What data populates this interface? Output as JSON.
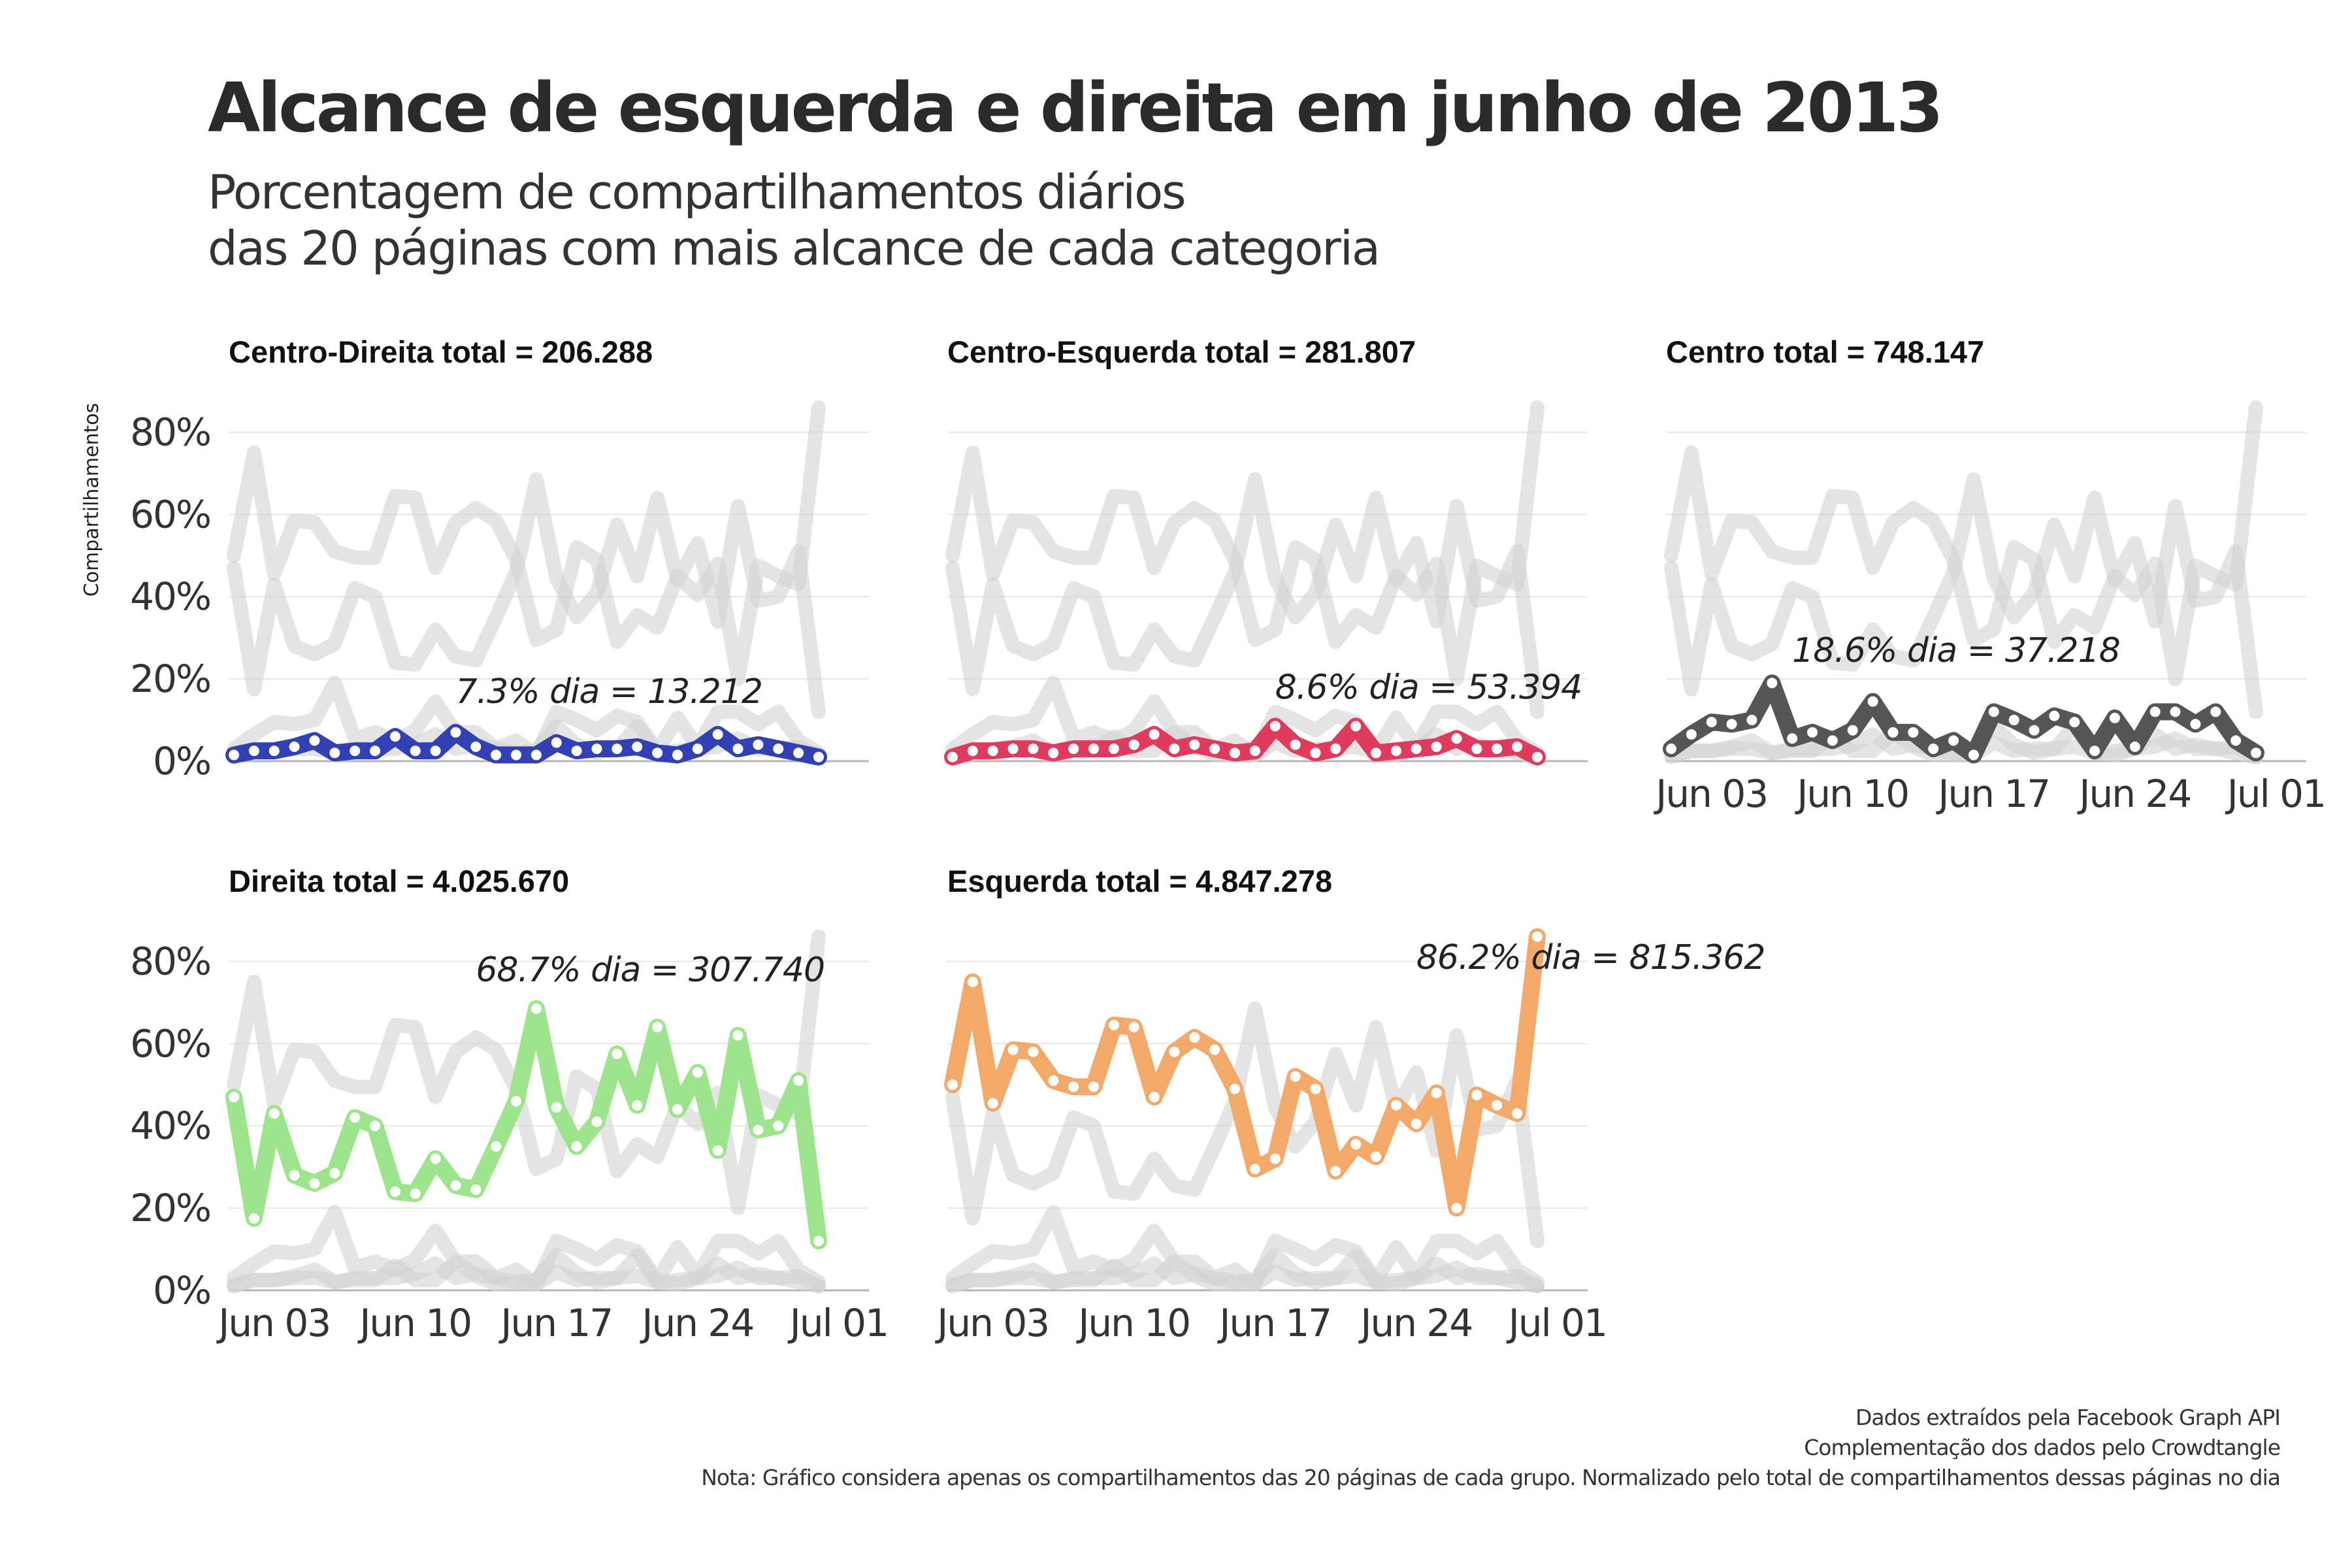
{
  "title": "Alcance de esquerda e direita em junho de 2013",
  "subtitle": [
    "Porcentagem de compartilhamentos diários",
    "das 20 páginas com mais alcance de cada categoria"
  ],
  "captions": [
    "Dados extraídos pela Facebook Graph API",
    "Complementação dos dados pelo Crowdtangle",
    "Nota: Gráfico considera apenas os compartilhamentos das 20 páginas de cada grupo. Normalizado pelo total de compartilhamentos dessas páginas no dia"
  ],
  "chart_data": {
    "type": "line",
    "facets": "small multiples, one panel per category; all other categories drawn as grey background lines",
    "y_axis_label": "Compartilhamentos",
    "ylim": [
      0,
      85
    ],
    "y_ticks": [
      "0%",
      "20%",
      "40%",
      "60%",
      "80%"
    ],
    "y_tick_values": [
      0,
      20,
      40,
      60,
      80
    ],
    "x_ticks": [
      "Jun 03",
      "Jun 10",
      "Jun 17",
      "Jun 24",
      "Jul 01"
    ],
    "x_tick_days": [
      3,
      10,
      17,
      24,
      31
    ],
    "x_days": [
      1,
      2,
      3,
      4,
      5,
      6,
      7,
      8,
      9,
      10,
      11,
      12,
      13,
      14,
      15,
      16,
      17,
      18,
      19,
      20,
      21,
      22,
      23,
      24,
      25,
      26,
      27,
      28,
      29,
      30
    ],
    "grid": true,
    "series": [
      {
        "name": "Centro-Direita",
        "strip": "Centro-Direita total = 206.288",
        "annotation": "7.3% dia = 13.212",
        "annotation_day": 12,
        "annotation_value": 17,
        "color": "#3240b5",
        "values": [
          1.5,
          2.5,
          2.5,
          3.5,
          5,
          2,
          2.5,
          2.5,
          6,
          2.5,
          2.5,
          7,
          3.5,
          1.5,
          1.5,
          1.5,
          4.5,
          2.5,
          3,
          3,
          3.5,
          2,
          1.5,
          3,
          6.5,
          3,
          4,
          3,
          2,
          1
        ]
      },
      {
        "name": "Centro-Esquerda",
        "strip": "Centro-Esquerda total = 281.807",
        "annotation": "8.6% dia = 53.394",
        "annotation_day": 17,
        "annotation_value": 18,
        "color": "#e03a5c",
        "values": [
          1,
          2.5,
          2.5,
          3,
          3,
          2,
          3,
          3,
          3,
          4,
          6.5,
          3,
          4,
          3,
          2,
          2.5,
          8.5,
          4,
          2,
          3,
          8.5,
          2,
          2.5,
          3,
          3.5,
          5.5,
          3,
          3,
          3.5,
          1
        ]
      },
      {
        "name": "Centro",
        "strip": "Centro total = 748.147",
        "annotation": "18.6% dia = 37.218",
        "annotation_day": 7,
        "annotation_value": 27,
        "color": "#555555",
        "values": [
          3,
          6.5,
          9.5,
          9,
          10,
          19,
          5.5,
          7,
          5,
          7.5,
          14.5,
          7,
          7,
          3,
          5,
          1.5,
          12,
          10,
          7.5,
          11,
          9.5,
          2.5,
          10.5,
          3.5,
          12,
          12,
          9,
          12,
          5,
          2
        ]
      },
      {
        "name": "Direita",
        "strip": "Direita total = 4.025.670",
        "annotation": "68.7% dia = 307.740",
        "annotation_day": 13,
        "annotation_value": 78,
        "color": "#9de48c",
        "values": [
          47,
          17.5,
          43,
          28,
          26,
          28.5,
          42,
          40,
          24,
          23.5,
          32,
          25.5,
          24.5,
          35,
          46,
          68.5,
          44.5,
          35,
          41,
          57.5,
          45,
          64,
          44,
          53,
          34,
          62,
          39,
          40,
          51,
          12
        ]
      },
      {
        "name": "Esquerda",
        "strip": "Esquerda total = 4.847.278",
        "annotation": "86.2% dia = 815.362",
        "annotation_day": 24,
        "annotation_value": 81,
        "color": "#f2a96a",
        "values": [
          50,
          75,
          45.5,
          58.5,
          58,
          51,
          49.5,
          49.5,
          64.5,
          64,
          47,
          58,
          61.5,
          58.5,
          49,
          29.5,
          32,
          52,
          49,
          29,
          35.5,
          32.5,
          45,
          40.5,
          48,
          20,
          47.5,
          45,
          43,
          86
        ]
      }
    ]
  }
}
